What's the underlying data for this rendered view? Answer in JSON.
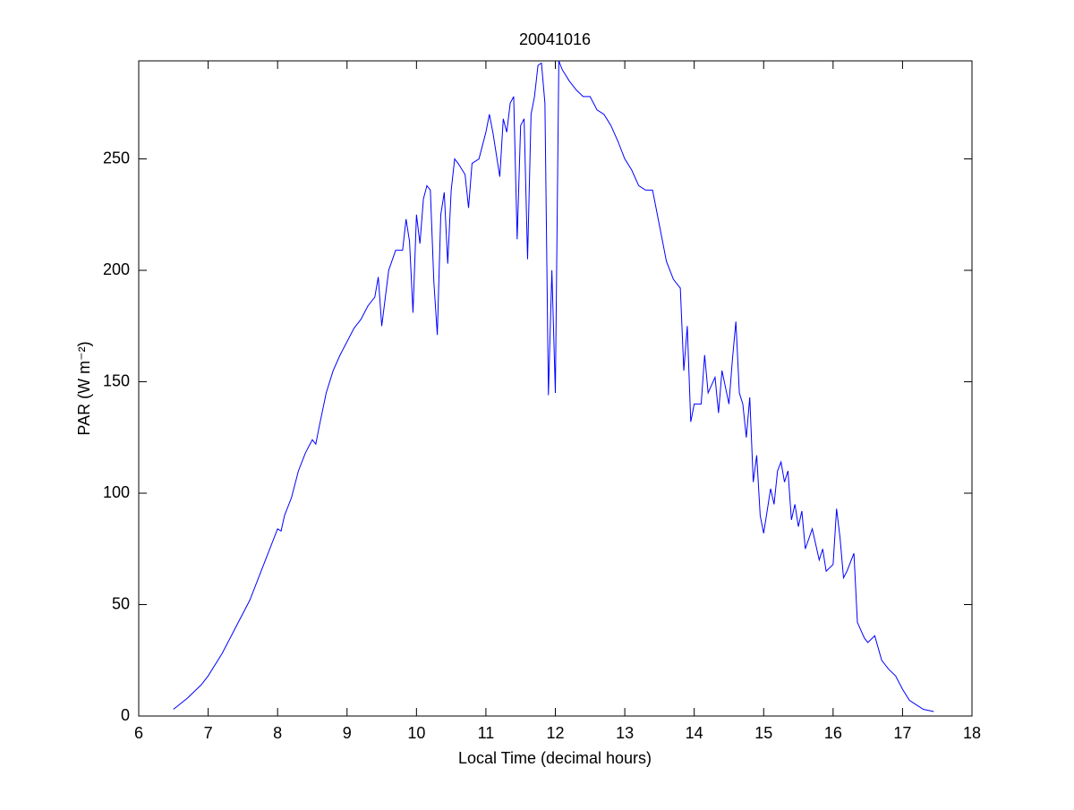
{
  "chart_data": {
    "type": "line",
    "title": "20041016",
    "x_label": "Local Time (decimal hours)",
    "y_label": "PAR (W m⁻²)",
    "x": [
      6.5,
      6.7,
      6.9,
      7.0,
      7.2,
      7.4,
      7.6,
      7.8,
      8.0,
      8.05,
      8.1,
      8.2,
      8.3,
      8.4,
      8.5,
      8.55,
      8.6,
      8.7,
      8.8,
      8.9,
      9.0,
      9.1,
      9.2,
      9.3,
      9.4,
      9.45,
      9.5,
      9.6,
      9.7,
      9.8,
      9.85,
      9.9,
      9.95,
      10.0,
      10.05,
      10.1,
      10.15,
      10.2,
      10.25,
      10.3,
      10.35,
      10.4,
      10.45,
      10.5,
      10.55,
      10.6,
      10.7,
      10.75,
      10.8,
      10.9,
      11.0,
      11.05,
      11.1,
      11.2,
      11.25,
      11.3,
      11.35,
      11.4,
      11.45,
      11.5,
      11.55,
      11.6,
      11.65,
      11.7,
      11.75,
      11.8,
      11.85,
      11.9,
      11.95,
      12.0,
      12.05,
      12.1,
      12.2,
      12.3,
      12.4,
      12.5,
      12.6,
      12.7,
      12.8,
      12.9,
      13.0,
      13.1,
      13.2,
      13.3,
      13.4,
      13.5,
      13.6,
      13.7,
      13.8,
      13.85,
      13.9,
      13.95,
      14.0,
      14.1,
      14.15,
      14.2,
      14.3,
      14.35,
      14.4,
      14.5,
      14.55,
      14.6,
      14.65,
      14.7,
      14.75,
      14.8,
      14.85,
      14.9,
      14.95,
      15.0,
      15.1,
      15.15,
      15.2,
      15.25,
      15.3,
      15.35,
      15.4,
      15.45,
      15.5,
      15.55,
      15.6,
      15.7,
      15.8,
      15.85,
      15.9,
      16.0,
      16.05,
      16.1,
      16.15,
      16.2,
      16.3,
      16.35,
      16.45,
      16.5,
      16.6,
      16.7,
      16.8,
      16.9,
      17.0,
      17.1,
      17.2,
      17.3,
      17.45
    ],
    "values": [
      3,
      8,
      14,
      18,
      28,
      40,
      52,
      68,
      84,
      83,
      90,
      98,
      110,
      118,
      124,
      122,
      130,
      145,
      155,
      162,
      168,
      174,
      178,
      184,
      188,
      197,
      175,
      200,
      209,
      209,
      223,
      213,
      181,
      225,
      212,
      232,
      238,
      236,
      195,
      171,
      225,
      235,
      203,
      236,
      250,
      248,
      243,
      228,
      248,
      250,
      262,
      270,
      262,
      242,
      268,
      262,
      275,
      278,
      214,
      265,
      268,
      205,
      270,
      278,
      292,
      293,
      275,
      144,
      200,
      145,
      294,
      290,
      285,
      281,
      278,
      278,
      272,
      270,
      265,
      258,
      250,
      245,
      238,
      236,
      236,
      220,
      204,
      196,
      192,
      155,
      175,
      132,
      140,
      140,
      162,
      145,
      152,
      136,
      155,
      140,
      160,
      177,
      145,
      140,
      125,
      143,
      105,
      117,
      90,
      82,
      102,
      95,
      110,
      114,
      105,
      110,
      88,
      95,
      85,
      92,
      75,
      84,
      70,
      75,
      65,
      68,
      93,
      80,
      62,
      65,
      73,
      42,
      35,
      33,
      36,
      25,
      21,
      18,
      12,
      7,
      5,
      3,
      2
    ],
    "color": "#0000ff",
    "xlim": [
      6,
      18
    ],
    "xticks": [
      6,
      7,
      8,
      9,
      10,
      11,
      12,
      13,
      14,
      15,
      16,
      17,
      18
    ],
    "ylim": [
      0,
      294
    ],
    "yticks": [
      0,
      50,
      100,
      150,
      200,
      250
    ]
  }
}
